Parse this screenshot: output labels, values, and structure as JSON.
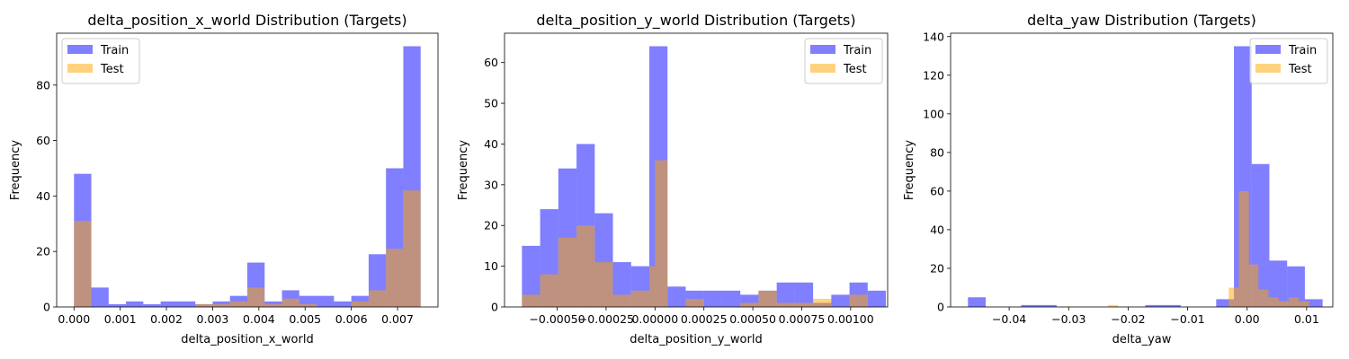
{
  "chart_data": [
    {
      "type": "bar",
      "subtype": "histogram",
      "title": "delta_position_x_world Distribution (Targets)",
      "xlabel": "delta_position_x_world",
      "ylabel": "Frequency",
      "xlim": [
        -0.000375,
        0.007875
      ],
      "ylim": [
        0,
        98.7
      ],
      "xticks": [
        0.0,
        0.001,
        0.002,
        0.003,
        0.004,
        0.005,
        0.006,
        0.007
      ],
      "xtick_labels": [
        "0.000",
        "0.001",
        "0.002",
        "0.003",
        "0.004",
        "0.005",
        "0.006",
        "0.007"
      ],
      "yticks": [
        0,
        20,
        40,
        60,
        80
      ],
      "ytick_labels": [
        "0",
        "20",
        "40",
        "60",
        "80"
      ],
      "legend_position": "top-left",
      "series": [
        {
          "name": "Train",
          "color": "#0000ff",
          "opacity": 0.5,
          "bins": [
            [
              0.0,
              0.000375,
              48
            ],
            [
              0.000375,
              0.00075,
              7
            ],
            [
              0.00075,
              0.001125,
              1
            ],
            [
              0.001125,
              0.0015,
              2
            ],
            [
              0.0015,
              0.001875,
              1
            ],
            [
              0.001875,
              0.00225,
              2
            ],
            [
              0.00225,
              0.002625,
              2
            ],
            [
              0.002625,
              0.003,
              1
            ],
            [
              0.003,
              0.003375,
              2
            ],
            [
              0.003375,
              0.00375,
              4
            ],
            [
              0.00375,
              0.004125,
              16
            ],
            [
              0.004125,
              0.0045,
              2
            ],
            [
              0.0045,
              0.004875,
              6
            ],
            [
              0.004875,
              0.00525,
              4
            ],
            [
              0.00525,
              0.005625,
              4
            ],
            [
              0.005625,
              0.006,
              2
            ],
            [
              0.006,
              0.006375,
              4
            ],
            [
              0.006375,
              0.00675,
              19
            ],
            [
              0.00675,
              0.007125,
              50
            ],
            [
              0.007125,
              0.0075,
              94
            ]
          ]
        },
        {
          "name": "Test",
          "color": "#ffa500",
          "opacity": 0.5,
          "bins": [
            [
              0.0,
              0.000375,
              31
            ],
            [
              0.00263,
              0.003,
              1
            ],
            [
              0.003,
              0.00338,
              1
            ],
            [
              0.00338,
              0.00375,
              2
            ],
            [
              0.00375,
              0.00412,
              7
            ],
            [
              0.00412,
              0.0045,
              1
            ],
            [
              0.0045,
              0.00487,
              3
            ],
            [
              0.00487,
              0.00525,
              1
            ],
            [
              0.006,
              0.00638,
              2
            ],
            [
              0.00638,
              0.00675,
              6
            ],
            [
              0.00675,
              0.00712,
              21
            ],
            [
              0.00712,
              0.0075,
              42
            ]
          ]
        }
      ]
    },
    {
      "type": "bar",
      "subtype": "histogram",
      "title": "delta_position_y_world Distribution (Targets)",
      "xlabel": "delta_position_y_world",
      "ylabel": "Frequency",
      "xlim": [
        -0.000769,
        0.001189
      ],
      "ylim": [
        0,
        67.2
      ],
      "xticks": [
        -0.0005,
        -0.00025,
        0.0,
        0.00025,
        0.0005,
        0.00075,
        0.001
      ],
      "xtick_labels": [
        "−0.00050",
        "−0.00025",
        "0.00000",
        "0.00025",
        "0.00050",
        "0.00075",
        "0.00100"
      ],
      "yticks": [
        0,
        10,
        20,
        30,
        40,
        50,
        60
      ],
      "ytick_labels": [
        "0",
        "10",
        "20",
        "30",
        "40",
        "50",
        "60"
      ],
      "legend_position": "top-right",
      "series": [
        {
          "name": "Train",
          "color": "#0000ff",
          "opacity": 0.5,
          "bins": [
            [
              -0.00068,
              -0.000587,
              15
            ],
            [
              -0.000587,
              -0.000494,
              24
            ],
            [
              -0.000494,
              -0.000401,
              34
            ],
            [
              -0.000401,
              -0.000308,
              40
            ],
            [
              -0.000308,
              -0.000215,
              23
            ],
            [
              -0.000215,
              -0.000122,
              11
            ],
            [
              -0.000122,
              -2.9e-05,
              10
            ],
            [
              -2.9e-05,
              6.4e-05,
              64
            ],
            [
              6.4e-05,
              0.000157,
              5
            ],
            [
              0.000157,
              0.00025,
              4
            ],
            [
              0.00025,
              0.000343,
              4
            ],
            [
              0.000343,
              0.000436,
              4
            ],
            [
              0.000436,
              0.000529,
              3
            ],
            [
              0.000529,
              0.000622,
              4
            ],
            [
              0.000622,
              0.000715,
              6
            ],
            [
              0.000715,
              0.000808,
              6
            ],
            [
              0.000808,
              0.000901,
              1
            ],
            [
              0.000901,
              0.000994,
              3
            ],
            [
              0.000994,
              0.001087,
              6
            ],
            [
              0.001087,
              0.00118,
              4
            ]
          ]
        },
        {
          "name": "Test",
          "color": "#ffa500",
          "opacity": 0.5,
          "bins": [
            [
              -0.00068,
              -0.000587,
              3
            ],
            [
              -0.000587,
              -0.000494,
              8
            ],
            [
              -0.000494,
              -0.000401,
              17
            ],
            [
              -0.000401,
              -0.000308,
              20
            ],
            [
              -0.000308,
              -0.000215,
              11
            ],
            [
              -0.000215,
              -0.000122,
              3
            ],
            [
              -0.000122,
              -2.9e-05,
              4
            ],
            [
              -2.9e-05,
              0.0,
              10
            ],
            [
              0.0,
              6.4e-05,
              36
            ],
            [
              0.000157,
              0.00025,
              2
            ],
            [
              0.000436,
              0.000529,
              1
            ],
            [
              0.000529,
              0.000622,
              4
            ],
            [
              0.000622,
              0.000715,
              1
            ],
            [
              0.000715,
              0.000808,
              1
            ],
            [
              0.000808,
              0.000901,
              2
            ],
            [
              0.000994,
              0.001087,
              3
            ]
          ]
        }
      ]
    },
    {
      "type": "bar",
      "subtype": "histogram",
      "title": "delta_yaw Distribution (Targets)",
      "xlabel": "delta_yaw",
      "ylabel": "Frequency",
      "xlim": [
        -0.04984,
        0.0144
      ],
      "ylim": [
        0,
        141.75
      ],
      "xticks": [
        -0.04,
        -0.03,
        -0.02,
        -0.01,
        0.0,
        0.01
      ],
      "xtick_labels": [
        "−0.04",
        "−0.03",
        "−0.02",
        "−0.01",
        "0.00",
        "0.01"
      ],
      "yticks": [
        0,
        20,
        40,
        60,
        80,
        100,
        120,
        140
      ],
      "ytick_labels": [
        "0",
        "20",
        "40",
        "60",
        "80",
        "100",
        "120",
        "140"
      ],
      "legend_position": "top-right",
      "series": [
        {
          "name": "Train",
          "color": "#0000ff",
          "opacity": 0.5,
          "bins": [
            [
              -0.04692,
              -0.04394,
              5
            ],
            [
              -0.03798,
              -0.035,
              1
            ],
            [
              -0.035,
              -0.03202,
              1
            ],
            [
              -0.01712,
              -0.01414,
              1
            ],
            [
              -0.01414,
              -0.01116,
              1
            ],
            [
              -0.0052,
              -0.00222,
              4
            ],
            [
              -0.00222,
              0.00076,
              135
            ],
            [
              0.00076,
              0.00374,
              74
            ],
            [
              0.00374,
              0.00672,
              24
            ],
            [
              0.00672,
              0.0097,
              21
            ],
            [
              0.0097,
              0.01268,
              4
            ]
          ]
        },
        {
          "name": "Test",
          "color": "#ffa500",
          "opacity": 0.5,
          "bins": [
            [
              -0.0234,
              -0.0217,
              1
            ],
            [
              -0.0031,
              -0.0014,
              10
            ],
            [
              -0.0014,
              0.0003,
              60
            ],
            [
              0.0003,
              0.0019,
              22
            ],
            [
              0.0019,
              0.0036,
              9
            ],
            [
              0.0036,
              0.0053,
              5
            ],
            [
              0.0053,
              0.007,
              3
            ],
            [
              0.007,
              0.0087,
              5
            ],
            [
              0.0087,
              0.0104,
              3
            ]
          ]
        }
      ]
    }
  ]
}
